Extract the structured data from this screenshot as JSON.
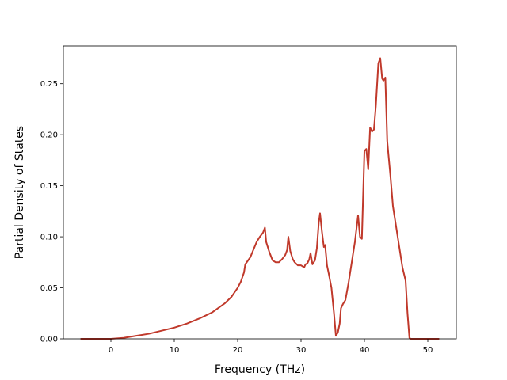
{
  "chart_data": {
    "type": "line",
    "title": "",
    "xlabel": "Frequency (THz)",
    "ylabel": "Partial Density of States",
    "xlim": [
      -7.5,
      54.5
    ],
    "ylim": [
      0.0,
      0.287
    ],
    "xticks": [
      0,
      10,
      20,
      30,
      40,
      50
    ],
    "xtick_labels": [
      "0",
      "10",
      "20",
      "30",
      "40",
      "50"
    ],
    "yticks": [
      0.0,
      0.05,
      0.1,
      0.15,
      0.2,
      0.25
    ],
    "ytick_labels": [
      "0.00",
      "0.05",
      "0.10",
      "0.15",
      "0.20",
      "0.25"
    ],
    "grid": false,
    "series": [
      {
        "color": "#c0392b",
        "x": [
          -4.8,
          0,
          2,
          4,
          6,
          8,
          10,
          12,
          14,
          16,
          18,
          19,
          20,
          20.5,
          21,
          21.2,
          22,
          23,
          23.5,
          24,
          24.3,
          24.5,
          25,
          25.5,
          26,
          26.5,
          27,
          27.5,
          27.8,
          28,
          28.3,
          28.7,
          29,
          29.5,
          30,
          30.5,
          30.7,
          31,
          31.3,
          31.5,
          31.8,
          32.2,
          32.5,
          32.8,
          33,
          33.3,
          33.6,
          33.8,
          34.1,
          34.4,
          34.8,
          35.2,
          35.5,
          35.8,
          36.1,
          36.3,
          36.6,
          37,
          37.5,
          38,
          38.5,
          39,
          39.3,
          39.6,
          40,
          40.3,
          40.6,
          40.9,
          41.2,
          41.5,
          41.8,
          42.2,
          42.5,
          42.8,
          43,
          43.3,
          43.6,
          43.8,
          44.1,
          44.5,
          45,
          45.5,
          46,
          46.5,
          46.8,
          47.1,
          47.3,
          48,
          50,
          51.8
        ],
        "y": [
          0,
          0,
          0.001,
          0.003,
          0.005,
          0.008,
          0.011,
          0.015,
          0.02,
          0.026,
          0.035,
          0.041,
          0.05,
          0.056,
          0.065,
          0.073,
          0.08,
          0.095,
          0.1,
          0.104,
          0.109,
          0.095,
          0.085,
          0.077,
          0.075,
          0.075,
          0.078,
          0.082,
          0.087,
          0.1,
          0.086,
          0.078,
          0.075,
          0.072,
          0.072,
          0.07,
          0.073,
          0.074,
          0.078,
          0.084,
          0.073,
          0.077,
          0.089,
          0.114,
          0.123,
          0.105,
          0.09,
          0.092,
          0.072,
          0.063,
          0.05,
          0.025,
          0.003,
          0.006,
          0.015,
          0.03,
          0.034,
          0.038,
          0.055,
          0.075,
          0.095,
          0.121,
          0.1,
          0.098,
          0.184,
          0.186,
          0.166,
          0.207,
          0.203,
          0.205,
          0.228,
          0.27,
          0.275,
          0.255,
          0.253,
          0.256,
          0.194,
          0.18,
          0.16,
          0.13,
          0.11,
          0.09,
          0.07,
          0.057,
          0.025,
          0.001,
          0,
          0,
          0,
          0
        ]
      }
    ]
  }
}
